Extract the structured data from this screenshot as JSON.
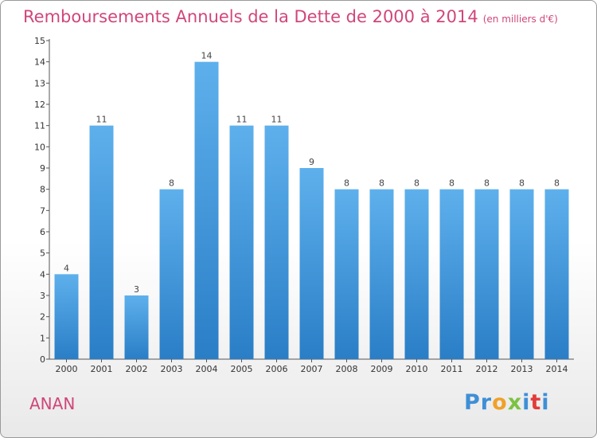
{
  "header": {
    "title": "Remboursements Annuels de la Dette de 2000 à 2014",
    "unit": "(en milliers d'€)"
  },
  "footer": {
    "place": "ANAN",
    "logo_letters": [
      "P",
      "r",
      "o",
      "x",
      "i",
      "t",
      "i"
    ],
    "logo_colors": [
      "#3e8fd6",
      "#3e8fd6",
      "#f0a12a",
      "#7cc242",
      "#3e8fd6",
      "#e23b3b",
      "#3e8fd6"
    ]
  },
  "colors": {
    "bar_top": "#5eb0ec",
    "bar_bottom": "#2a7ec6",
    "title": "#d0467a"
  },
  "chart_data": {
    "type": "bar",
    "categories": [
      "2000",
      "2001",
      "2002",
      "2003",
      "2004",
      "2005",
      "2006",
      "2007",
      "2008",
      "2009",
      "2010",
      "2011",
      "2012",
      "2013",
      "2014"
    ],
    "values": [
      4,
      11,
      3,
      8,
      14,
      11,
      11,
      9,
      8,
      8,
      8,
      8,
      8,
      8,
      8
    ],
    "data_labels": [
      "4",
      "11",
      "3",
      "8",
      "14",
      "11",
      "11",
      "9",
      "8",
      "8",
      "8",
      "8",
      "8",
      "8",
      "8"
    ],
    "title": "Remboursements Annuels de la Dette de 2000 à 2014",
    "xlabel": "",
    "ylabel": "",
    "ylim": [
      0,
      15
    ],
    "yticks": [
      0,
      1,
      2,
      3,
      4,
      5,
      6,
      7,
      8,
      9,
      10,
      11,
      12,
      13,
      14,
      15
    ],
    "grid": false,
    "legend": "none"
  }
}
